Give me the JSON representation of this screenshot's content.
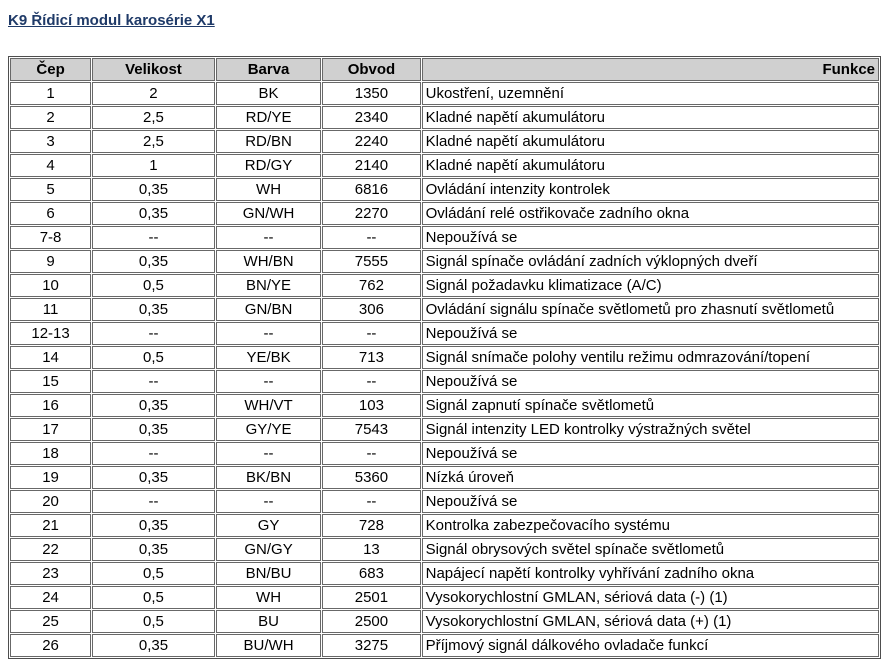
{
  "page": {
    "title": "K9 Řídicí modul karosérie X1"
  },
  "colors": {
    "title_text": "#1f3a68",
    "header_background": "#d0d0d0",
    "cell_border": "#686868",
    "outer_border": "#4e4e4e",
    "body_text": "#000000",
    "page_background": "#ffffff"
  },
  "table": {
    "headers": [
      "Čep",
      "Velikost",
      "Barva",
      "Obvod",
      "Funkce"
    ],
    "rows": [
      [
        "1",
        "2",
        "BK",
        "1350",
        "Ukostření, uzemnění"
      ],
      [
        "2",
        "2,5",
        "RD/YE",
        "2340",
        "Kladné napětí akumulátoru"
      ],
      [
        "3",
        "2,5",
        "RD/BN",
        "2240",
        "Kladné napětí akumulátoru"
      ],
      [
        "4",
        "1",
        "RD/GY",
        "2140",
        "Kladné napětí akumulátoru"
      ],
      [
        "5",
        "0,35",
        "WH",
        "6816",
        "Ovládání intenzity kontrolek"
      ],
      [
        "6",
        "0,35",
        "GN/WH",
        "2270",
        "Ovládání relé ostřikovače zadního okna"
      ],
      [
        "7-8",
        "--",
        "--",
        "--",
        "Nepoužívá se"
      ],
      [
        "9",
        "0,35",
        "WH/BN",
        "7555",
        "Signál spínače ovládání zadních výklopných dveří"
      ],
      [
        "10",
        "0,5",
        "BN/YE",
        "762",
        "Signál požadavku klimatizace (A/C)"
      ],
      [
        "11",
        "0,35",
        "GN/BN",
        "306",
        "Ovládání signálu spínače světlometů pro zhasnutí světlometů"
      ],
      [
        "12-13",
        "--",
        "--",
        "--",
        "Nepoužívá se"
      ],
      [
        "14",
        "0,5",
        "YE/BK",
        "713",
        "Signál snímače polohy ventilu režimu odmrazování/topení"
      ],
      [
        "15",
        "--",
        "--",
        "--",
        "Nepoužívá se"
      ],
      [
        "16",
        "0,35",
        "WH/VT",
        "103",
        "Signál zapnutí spínače světlometů"
      ],
      [
        "17",
        "0,35",
        "GY/YE",
        "7543",
        "Signál intenzity LED kontrolky výstražných světel"
      ],
      [
        "18",
        "--",
        "--",
        "--",
        "Nepoužívá se"
      ],
      [
        "19",
        "0,35",
        "BK/BN",
        "5360",
        "Nízká úroveň"
      ],
      [
        "20",
        "--",
        "--",
        "--",
        "Nepoužívá se"
      ],
      [
        "21",
        "0,35",
        "GY",
        "728",
        "Kontrolka zabezpečovacího systému"
      ],
      [
        "22",
        "0,35",
        "GN/GY",
        "13",
        "Signál obrysových světel spínače světlometů"
      ],
      [
        "23",
        "0,5",
        "BN/BU",
        "683",
        "Napájecí napětí kontrolky vyhřívání zadního okna"
      ],
      [
        "24",
        "0,5",
        "WH",
        "2501",
        "Vysokorychlostní GMLAN, sériová data (-) (1)"
      ],
      [
        "25",
        "0,5",
        "BU",
        "2500",
        "Vysokorychlostní GMLAN, sériová data (+) (1)"
      ],
      [
        "26",
        "0,35",
        "BU/WH",
        "3275",
        "Příjmový signál dálkového ovladače funkcí"
      ]
    ]
  }
}
